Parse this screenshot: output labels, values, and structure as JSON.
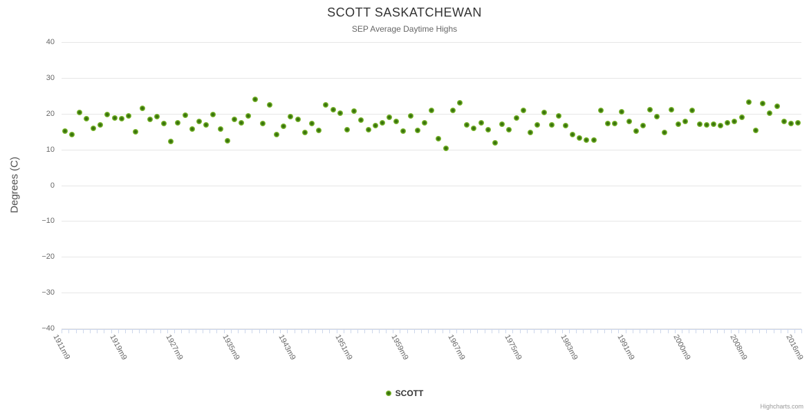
{
  "credits": "Highcharts.com",
  "colors": {
    "point_inner": "#38720c",
    "point_outer": "#7cb82e",
    "point_edge": "#8ac43c",
    "grid_line": "#e6e6e6",
    "axis_tick": "#ccd6eb",
    "title_text": "#333333",
    "subtitle_text": "#666666",
    "axis_label_text": "#666666",
    "credits_text": "#999999"
  },
  "x_axis": {
    "label_step": 8,
    "visible_tick_labels": [
      "1911m9",
      "1919m9",
      "1927m9",
      "1935m9",
      "1943m9",
      "1951m9",
      "1959m9",
      "1967m9",
      "1975m9",
      "1983m9",
      "1991m9",
      "2000m9",
      "2008m9",
      "2016m9"
    ]
  },
  "chart_data": {
    "type": "scatter",
    "title": "SCOTT SASKATCHEWAN",
    "subtitle": "SEP Average Daytime Highs",
    "xlabel": "",
    "ylabel": "Degrees (C)",
    "ylim": [
      -40,
      40
    ],
    "y_tick_interval": 10,
    "grid": "horizontal",
    "legend_position": "bottom-center",
    "series": [
      {
        "name": "SCOTT",
        "color": "#7cb82e",
        "categories": [
          "1911m9",
          "1912m9",
          "1913m9",
          "1914m9",
          "1915m9",
          "1916m9",
          "1917m9",
          "1918m9",
          "1919m9",
          "1920m9",
          "1921m9",
          "1922m9",
          "1923m9",
          "1924m9",
          "1925m9",
          "1926m9",
          "1927m9",
          "1928m9",
          "1929m9",
          "1930m9",
          "1931m9",
          "1932m9",
          "1933m9",
          "1934m9",
          "1935m9",
          "1936m9",
          "1937m9",
          "1938m9",
          "1939m9",
          "1940m9",
          "1941m9",
          "1942m9",
          "1943m9",
          "1944m9",
          "1945m9",
          "1946m9",
          "1947m9",
          "1948m9",
          "1949m9",
          "1950m9",
          "1951m9",
          "1952m9",
          "1953m9",
          "1954m9",
          "1955m9",
          "1956m9",
          "1957m9",
          "1958m9",
          "1959m9",
          "1960m9",
          "1961m9",
          "1962m9",
          "1963m9",
          "1964m9",
          "1965m9",
          "1966m9",
          "1967m9",
          "1968m9",
          "1969m9",
          "1970m9",
          "1971m9",
          "1972m9",
          "1973m9",
          "1974m9",
          "1975m9",
          "1976m9",
          "1977m9",
          "1978m9",
          "1979m9",
          "1980m9",
          "1981m9",
          "1982m9",
          "1983m9",
          "1984m9",
          "1985m9",
          "1986m9",
          "1987m9",
          "1988m9",
          "1989m9",
          "1990m9",
          "1991m9",
          "1992m9",
          "1993m9",
          "1995m9",
          "1996m9",
          "1997m9",
          "1998m9",
          "1999m9",
          "2000m9",
          "2001m9",
          "2002m9",
          "2003m9",
          "2004m9",
          "2005m9",
          "2006m9",
          "2007m9",
          "2008m9",
          "2009m9",
          "2010m9",
          "2011m9",
          "2012m9",
          "2013m9",
          "2014m9",
          "2015m9",
          "2016m9"
        ],
        "values": [
          15.2,
          14.1,
          20.4,
          18.6,
          16.0,
          16.8,
          19.7,
          18.8,
          18.6,
          19.3,
          15.0,
          21.5,
          18.4,
          19.1,
          17.2,
          12.2,
          17.5,
          19.5,
          15.7,
          17.8,
          16.9,
          19.7,
          15.7,
          12.5,
          18.4,
          17.5,
          19.3,
          24.0,
          17.3,
          22.5,
          14.1,
          16.5,
          19.1,
          18.4,
          14.8,
          17.2,
          15.4,
          22.4,
          21.1,
          20.1,
          15.5,
          20.8,
          18.3,
          15.5,
          16.7,
          17.5,
          18.9,
          17.9,
          15.1,
          19.4,
          15.3,
          17.5,
          21.0,
          13.1,
          10.4,
          20.9,
          23.0,
          16.8,
          16.0,
          17.5,
          15.5,
          11.9,
          17.0,
          15.5,
          18.8,
          20.9,
          14.7,
          16.8,
          20.4,
          16.8,
          19.3,
          16.6,
          14.1,
          13.3,
          12.7,
          12.7,
          20.9,
          17.2,
          17.2,
          20.6,
          17.9,
          15.2,
          16.6,
          21.2,
          19.2,
          14.8,
          21.2,
          17.0,
          17.8,
          20.9,
          17.0,
          16.8,
          17.0,
          16.6,
          17.5,
          17.8,
          18.9,
          23.3,
          15.3,
          22.8,
          20.1,
          22.0,
          17.8,
          17.2,
          17.5
        ]
      }
    ]
  }
}
